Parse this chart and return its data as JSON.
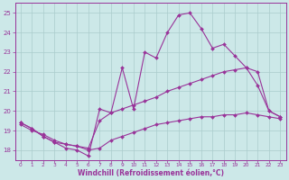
{
  "xlabel": "Windchill (Refroidissement éolien,°C)",
  "background_color": "#cce8e8",
  "line_color": "#993399",
  "grid_color": "#aacccc",
  "xlim": [
    -0.5,
    23.5
  ],
  "ylim": [
    17.5,
    25.5
  ],
  "yticks": [
    18,
    19,
    20,
    21,
    22,
    23,
    24,
    25
  ],
  "xticks": [
    0,
    1,
    2,
    3,
    4,
    5,
    6,
    7,
    8,
    9,
    10,
    11,
    12,
    13,
    14,
    15,
    16,
    17,
    18,
    19,
    20,
    21,
    22,
    23
  ],
  "series": [
    {
      "x": [
        0,
        1,
        2,
        3,
        4,
        5,
        6,
        7,
        8,
        9,
        10,
        11,
        12,
        13,
        14,
        15,
        16,
        17,
        18,
        19,
        20,
        21,
        22,
        23
      ],
      "y": [
        19.4,
        19.1,
        18.7,
        18.4,
        18.1,
        18.0,
        17.7,
        20.1,
        19.9,
        22.2,
        20.1,
        23.0,
        22.7,
        24.0,
        24.9,
        25.0,
        24.2,
        23.2,
        23.4,
        22.8,
        22.2,
        21.3,
        20.0,
        19.7
      ]
    },
    {
      "x": [
        0,
        1,
        2,
        3,
        4,
        5,
        6,
        7,
        8,
        9,
        10,
        11,
        12,
        13,
        14,
        15,
        16,
        17,
        18,
        19,
        20,
        21,
        22,
        23
      ],
      "y": [
        19.4,
        19.1,
        18.7,
        18.4,
        18.3,
        18.2,
        18.1,
        19.5,
        19.9,
        20.1,
        20.3,
        20.5,
        20.7,
        21.0,
        21.2,
        21.4,
        21.6,
        21.8,
        22.0,
        22.1,
        22.2,
        22.0,
        20.0,
        19.7
      ]
    },
    {
      "x": [
        0,
        1,
        2,
        3,
        4,
        5,
        6,
        7,
        8,
        9,
        10,
        11,
        12,
        13,
        14,
        15,
        16,
        17,
        18,
        19,
        20,
        21,
        22,
        23
      ],
      "y": [
        19.3,
        19.0,
        18.8,
        18.5,
        18.3,
        18.2,
        18.0,
        18.1,
        18.5,
        18.7,
        18.9,
        19.1,
        19.3,
        19.4,
        19.5,
        19.6,
        19.7,
        19.7,
        19.8,
        19.8,
        19.9,
        19.8,
        19.7,
        19.6
      ]
    }
  ]
}
